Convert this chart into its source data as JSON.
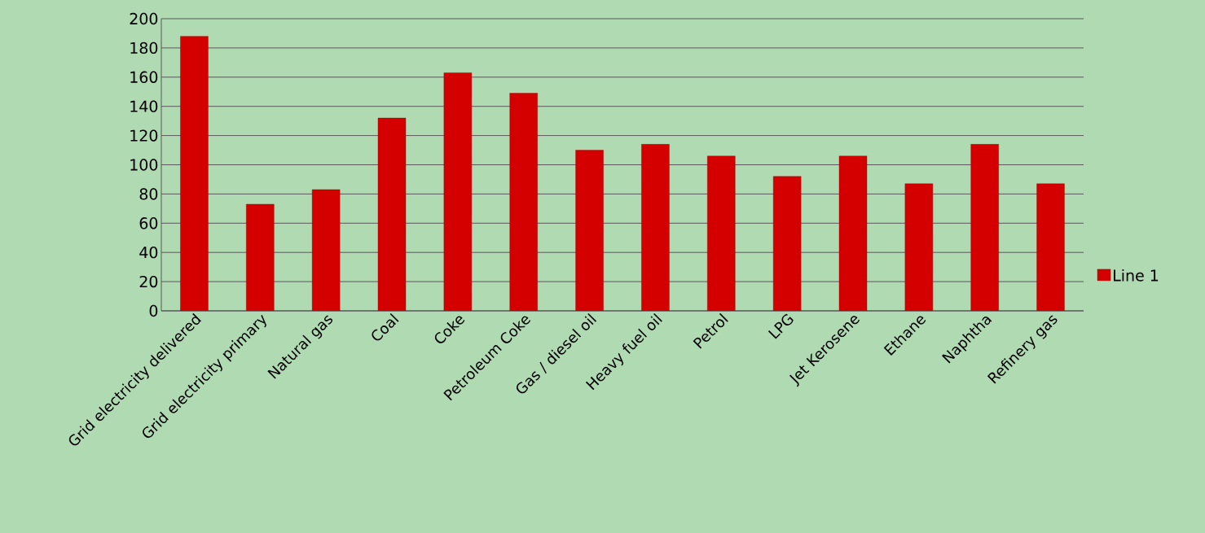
{
  "chart_data": {
    "type": "bar",
    "categories": [
      "Grid electricity delivered",
      "Grid electricity primary",
      "Natural gas",
      "Coal",
      "Coke",
      "Petroleum Coke",
      "Gas / diesel oil",
      "Heavy fuel oil",
      "Petrol",
      "LPG",
      "Jet Kerosene",
      "Ethane",
      "Naphtha",
      "Refinery gas"
    ],
    "series": [
      {
        "name": "Line 1",
        "color": "#d40000",
        "values": [
          188,
          73,
          83,
          132,
          163,
          149,
          110,
          114,
          106,
          92,
          106,
          87,
          114,
          87
        ]
      }
    ],
    "ylim": [
      0,
      200
    ],
    "yticks": [
      0,
      20,
      40,
      60,
      80,
      100,
      120,
      140,
      160,
      180,
      200
    ],
    "grid": "y",
    "legend": "right"
  }
}
